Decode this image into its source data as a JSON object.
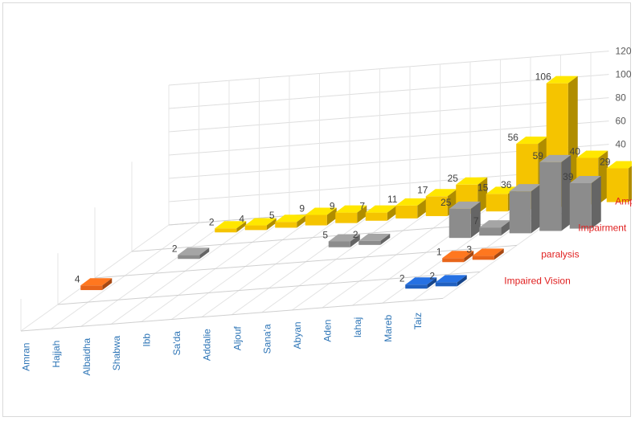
{
  "chart_data": {
    "type": "bar",
    "title": "",
    "xlabel": "",
    "ylabel": "",
    "ylim": [
      0,
      120
    ],
    "yticks": [
      0,
      20,
      40,
      60,
      80,
      100,
      120
    ],
    "grid": true,
    "legend": "series labels at right end of each depth row",
    "categories": [
      "Amran",
      "Hajjah",
      "Albaidha",
      "Shabwa",
      "Ibb",
      "Sa'da",
      "Addalie",
      "Aljouf",
      "Sana'a",
      "Abyan",
      "Aden",
      "lahaj",
      "Mareb",
      "Taiz"
    ],
    "series": [
      {
        "name": "Amputated Limbs",
        "color": "#f5c400",
        "values": [
          null,
          null,
          2,
          4,
          5,
          9,
          9,
          7,
          11,
          17,
          25,
          15,
          56,
          106
        ]
      },
      {
        "name": "Impairment",
        "color": "#8c8c8c",
        "values": [
          null,
          null,
          2,
          null,
          null,
          null,
          null,
          5,
          2,
          null,
          null,
          25,
          7,
          36
        ]
      },
      {
        "name": "paralysis",
        "color": "#e8651a",
        "values": [
          4,
          null,
          null,
          null,
          null,
          null,
          null,
          null,
          null,
          null,
          null,
          null,
          1,
          3
        ]
      },
      {
        "name": "Impaired Vision",
        "color": "#2060c0",
        "values": [
          null,
          null,
          null,
          null,
          null,
          null,
          null,
          null,
          null,
          null,
          null,
          null,
          2,
          2
        ]
      }
    ],
    "extra_bars": [
      {
        "series": "Impairment",
        "category_after": "Taiz",
        "value": 59
      },
      {
        "series": "Impairment",
        "category_after": "Taiz",
        "value": 39
      },
      {
        "series": "Amputated Limbs",
        "category_after": "Taiz",
        "value": 40
      },
      {
        "series": "Amputated Limbs",
        "category_after": "Taiz",
        "value": 29
      }
    ]
  }
}
